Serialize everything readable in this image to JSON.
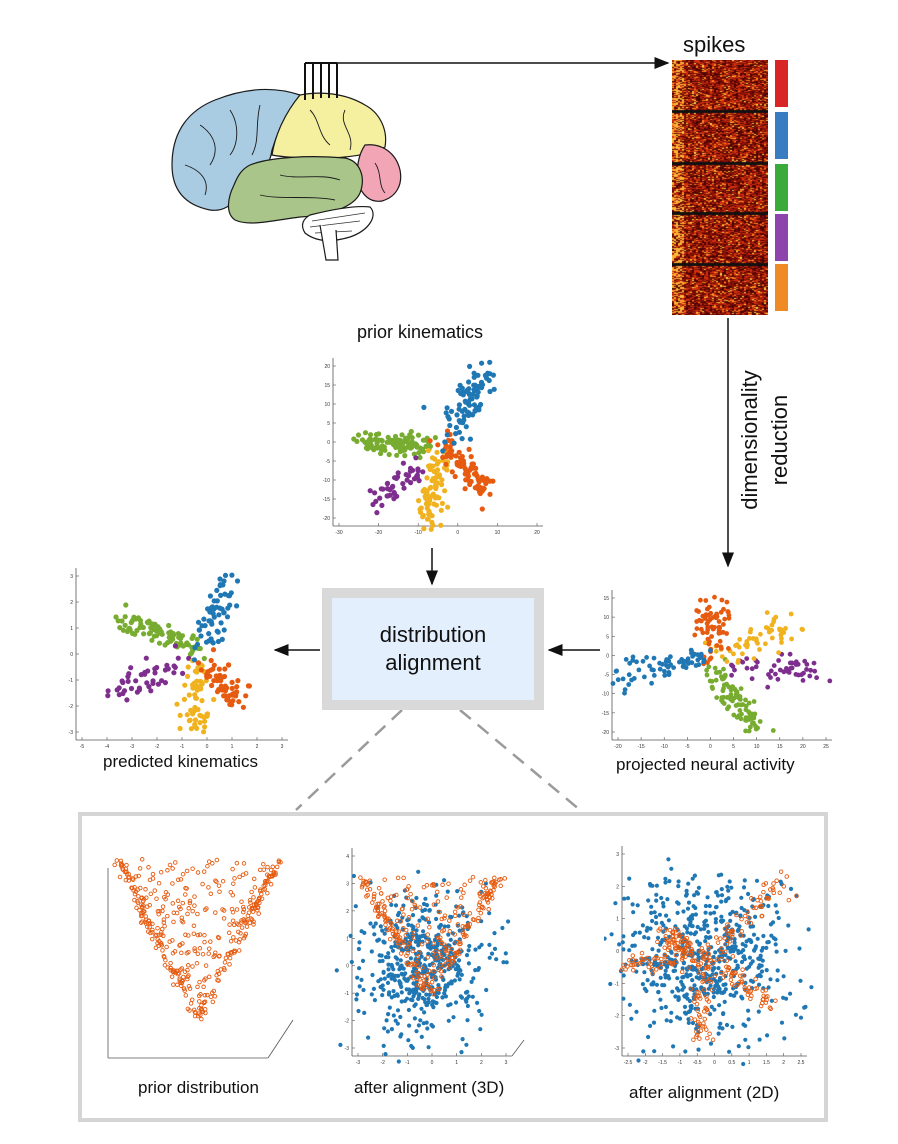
{
  "labels": {
    "spikes": "spikes",
    "dim_reduction_line1": "dimensionality",
    "dim_reduction_line2": "reduction",
    "prior_kinematics": "prior kinematics",
    "distribution_alignment_line1": "distribution",
    "distribution_alignment_line2": "alignment",
    "predicted_kinematics": "predicted kinematics",
    "projected_neural_activity": "projected neural activity",
    "prior_distribution": "prior distribution",
    "after_alignment_3d": "after alignment (3D)",
    "after_alignment_2d": "after alignment (2D)"
  },
  "colors": {
    "blue": "#1f77b4",
    "orange": "#e65b10",
    "yellow": "#f0b21e",
    "purple": "#7e2f8e",
    "green": "#77ac30",
    "red": "#d92525",
    "stripe_blue": "#3a7cc1",
    "stripe_green": "#3aaa3a",
    "stripe_purple": "#8e44ad",
    "stripe_orange": "#f08a24",
    "brain_frontal": "#a9cce3",
    "brain_parietal": "#f5f0a0",
    "brain_temporal": "#a9c58a",
    "brain_occipital": "#f2a6b5"
  },
  "chart_data": [
    {
      "id": "prior-kinematics",
      "type": "scatter",
      "title": "prior kinematics",
      "xlim": [
        -30,
        30
      ],
      "ylim": [
        -22,
        24
      ],
      "xticks": [
        "-30",
        "-20",
        "-10",
        "0",
        "10",
        "20"
      ],
      "yticks": [
        "20",
        "15",
        "10",
        "5",
        "0",
        "-5",
        "-10",
        "-15",
        "-20"
      ],
      "series": [
        {
          "color": "blue",
          "cluster": {
            "from": [
              2,
              2
            ],
            "to": [
              14,
              20
            ],
            "n": 90,
            "spread": 2.2
          }
        },
        {
          "color": "orange",
          "cluster": {
            "from": [
              2,
              0
            ],
            "to": [
              14,
              -12
            ],
            "n": 80,
            "spread": 2.0
          }
        },
        {
          "color": "yellow",
          "cluster": {
            "from": [
              0,
              -2
            ],
            "to": [
              -2,
              -21
            ],
            "n": 80,
            "spread": 1.8
          }
        },
        {
          "color": "purple",
          "cluster": {
            "from": [
              -4,
              -4
            ],
            "to": [
              -18,
              -16
            ],
            "n": 45,
            "spread": 1.5
          }
        },
        {
          "color": "green",
          "cluster": {
            "from": [
              0,
              0
            ],
            "to": [
              -22,
              1
            ],
            "n": 100,
            "spread": 1.4
          }
        }
      ]
    },
    {
      "id": "predicted-kinematics",
      "type": "scatter",
      "title": "predicted kinematics",
      "xlim": [
        -5,
        3.5
      ],
      "ylim": [
        -3.5,
        3.5
      ],
      "xticks": [
        "-5",
        "-4",
        "-3",
        "-2",
        "-1",
        "0",
        "1",
        "2",
        "3"
      ],
      "yticks": [
        "3",
        "2",
        "1",
        "0",
        "-1",
        "-2",
        "-3"
      ],
      "series": [
        {
          "color": "blue",
          "cluster": {
            "from": [
              0.2,
              0.3
            ],
            "to": [
              1.2,
              3.0
            ],
            "n": 60,
            "spread": 0.3
          }
        },
        {
          "color": "orange",
          "cluster": {
            "from": [
              0.2,
              -0.1
            ],
            "to": [
              1.4,
              -2.0
            ],
            "n": 60,
            "spread": 0.3
          }
        },
        {
          "color": "yellow",
          "cluster": {
            "from": [
              0,
              -0.3
            ],
            "to": [
              -0.4,
              -3.2
            ],
            "n": 60,
            "spread": 0.25
          }
        },
        {
          "color": "purple",
          "cluster": {
            "from": [
              -0.6,
              -0.3
            ],
            "to": [
              -3.5,
              -1.6
            ],
            "n": 45,
            "spread": 0.3
          }
        },
        {
          "color": "green",
          "cluster": {
            "from": [
              0.2,
              0.1
            ],
            "to": [
              -3.5,
              1.6
            ],
            "n": 90,
            "spread": 0.2
          }
        }
      ]
    },
    {
      "id": "projected-neural-activity",
      "type": "scatter",
      "title": "projected neural activity",
      "xlim": [
        -25,
        28
      ],
      "ylim": [
        -20,
        16
      ],
      "xticks": [
        "-20",
        "-15",
        "-10",
        "-5",
        "0",
        "5",
        "10",
        "15",
        "20",
        "25"
      ],
      "yticks": [
        "15",
        "10",
        "5",
        "0",
        "-5",
        "-10",
        "-15",
        "-20"
      ],
      "series": [
        {
          "color": "blue",
          "cluster": {
            "from": [
              -2,
              0
            ],
            "to": [
              -24,
              -5
            ],
            "n": 70,
            "spread": 1.5
          }
        },
        {
          "color": "orange",
          "cluster": {
            "from": [
              -2,
              0
            ],
            "to": [
              0,
              12
            ],
            "n": 70,
            "spread": 2.0
          }
        },
        {
          "color": "yellow",
          "cluster": {
            "from": [
              0,
              0
            ],
            "to": [
              18,
              8
            ],
            "n": 55,
            "spread": 2.2
          }
        },
        {
          "color": "purple",
          "cluster": {
            "from": [
              2,
              -2
            ],
            "to": [
              27,
              -4
            ],
            "n": 50,
            "spread": 2.0
          }
        },
        {
          "color": "green",
          "cluster": {
            "from": [
              -2,
              -2
            ],
            "to": [
              10,
              -17
            ],
            "n": 90,
            "spread": 1.6
          }
        }
      ]
    },
    {
      "id": "prior-distribution",
      "type": "scatter",
      "title": "prior distribution",
      "series": [
        {
          "color": "orange",
          "style": "open",
          "shape": "v-cone",
          "n": 420
        }
      ]
    },
    {
      "id": "after-alignment-3d",
      "type": "scatter",
      "title": "after alignment (3D)",
      "xlim": [
        -3,
        3
      ],
      "ylim": [
        -3,
        4
      ],
      "xticks": [
        "-3",
        "-2",
        "-1",
        "0",
        "1",
        "2",
        "3"
      ],
      "yticks": [
        "4",
        "3",
        "2",
        "1",
        "0",
        "-1",
        "-2",
        "-3"
      ],
      "series": [
        {
          "color": "blue",
          "style": "filled",
          "shape": "blob",
          "n": 520
        },
        {
          "color": "orange",
          "style": "open",
          "shape": "v-cone",
          "n": 300
        }
      ]
    },
    {
      "id": "after-alignment-2d",
      "type": "scatter",
      "title": "after alignment (2D)",
      "xlim": [
        -2.5,
        2.5
      ],
      "ylim": [
        -3,
        3
      ],
      "xticks": [
        "-2.5",
        "-2",
        "-1.5",
        "-1",
        "-0.5",
        "0",
        "0.5",
        "1",
        "1.5",
        "2",
        "2.5"
      ],
      "yticks": [
        "3",
        "2",
        "1",
        "0",
        "-1",
        "-2",
        "-3"
      ],
      "series": [
        {
          "color": "blue",
          "style": "filled",
          "shape": "blob",
          "n": 600
        },
        {
          "color": "orange",
          "style": "open",
          "shape": "star",
          "n": 300
        }
      ]
    }
  ]
}
